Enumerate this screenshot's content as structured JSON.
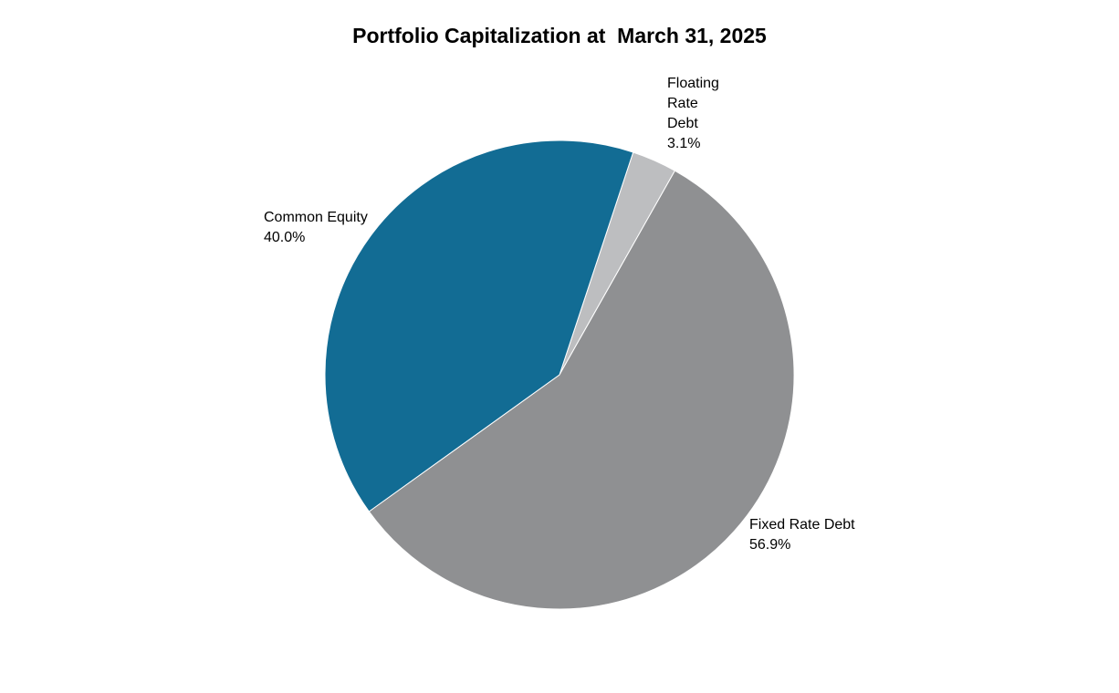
{
  "chart_data": {
    "type": "pie",
    "title": "Portfolio Capitalization at  March 31, 2025",
    "slices": [
      {
        "label": "Floating Rate Debt",
        "value": 3.1,
        "value_label": "3.1%",
        "color": "#bdbec0",
        "label_lines": [
          "Floating",
          "Rate",
          "Debt",
          "3.1%"
        ]
      },
      {
        "label": "Fixed Rate Debt",
        "value": 56.9,
        "value_label": "56.9%",
        "color": "#8f9092",
        "label_lines": [
          "Fixed Rate Debt",
          "56.9%"
        ]
      },
      {
        "label": "Common Equity",
        "value": 40.0,
        "value_label": "40.0%",
        "color": "#126c94",
        "label_lines": [
          "Common Equity",
          "40.0%"
        ]
      }
    ],
    "start_at": "top-right",
    "legend": "none"
  }
}
